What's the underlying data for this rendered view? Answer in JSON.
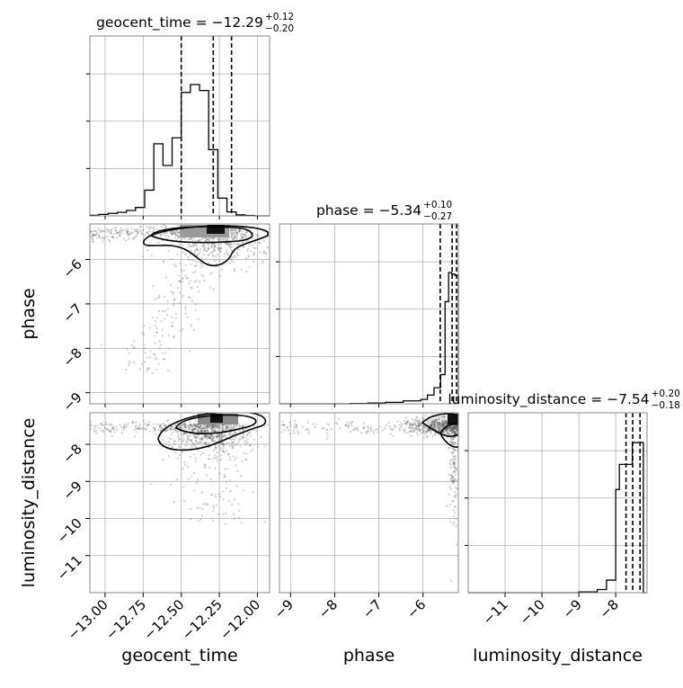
{
  "chart_data": {
    "type": "corner",
    "parameters": [
      {
        "name": "geocent_time",
        "title": "geocent_time = −12.29",
        "median": -12.29,
        "plus": "+0.12",
        "minus": "−0.20",
        "range": [
          -13.1,
          -11.92
        ],
        "ticks": [
          -13.0,
          -12.75,
          -12.5,
          -12.25,
          -12.0
        ],
        "tick_labels": [
          "−13.00",
          "−12.75",
          "−12.50",
          "−12.25",
          "−12.00"
        ],
        "quantiles": [
          -12.5,
          -12.29,
          -12.17
        ],
        "hist_edges": [
          -13.1,
          -13.04,
          -12.98,
          -12.92,
          -12.86,
          -12.8,
          -12.74,
          -12.68,
          -12.62,
          -12.56,
          -12.5,
          -12.44,
          -12.38,
          -12.32,
          -12.26,
          -12.2,
          -12.14,
          -12.08,
          -12.02,
          -11.96,
          -11.92
        ],
        "hist_counts": [
          0.5,
          1.5,
          2.5,
          3.5,
          5.5,
          8.5,
          26,
          73,
          51,
          79,
          125,
          133,
          127,
          67,
          18,
          4,
          1,
          0.3,
          0,
          0
        ]
      },
      {
        "name": "phase",
        "title": "phase = −5.34",
        "median": -5.34,
        "plus": "+0.10",
        "minus": "−0.27",
        "range": [
          -9.25,
          -5.2
        ],
        "ticks": [
          -9,
          -8,
          -7,
          -6
        ],
        "tick_labels": [
          "−9",
          "−8",
          "−7",
          "−6"
        ],
        "quantiles": [
          -5.61,
          -5.34,
          -5.24
        ],
        "hist_edges": [
          -9.25,
          -8.85,
          -8.45,
          -8.05,
          -7.65,
          -7.25,
          -6.85,
          -6.45,
          -6.05,
          -5.9,
          -5.75,
          -5.6,
          -5.5,
          -5.42,
          -5.35,
          -5.28,
          -5.2
        ],
        "hist_counts": [
          0,
          0,
          0,
          0,
          0.5,
          1,
          2,
          4,
          6,
          12,
          22,
          40,
          140,
          180,
          178,
          176
        ]
      },
      {
        "name": "luminosity_distance",
        "title": "luminosity_distance = −7.54",
        "median": -7.54,
        "plus": "+0.20",
        "minus": "−0.18",
        "range": [
          -12.0,
          -7.15
        ],
        "ticks": [
          -11,
          -10,
          -9,
          -8
        ],
        "tick_labels": [
          "−11",
          "−10",
          "−9",
          "−8"
        ],
        "quantiles": [
          -7.72,
          -7.54,
          -7.34
        ],
        "hist_edges": [
          -12.0,
          -11.5,
          -11.0,
          -10.5,
          -10.0,
          -9.5,
          -9.0,
          -8.5,
          -8.25,
          -8.0,
          -7.9,
          -7.7,
          -7.55,
          -7.4,
          -7.25,
          -7.15
        ],
        "hist_counts": [
          0,
          0,
          0,
          0,
          0,
          0,
          0.5,
          2,
          8,
          66,
          82,
          82,
          96,
          96,
          0
        ],
        "hist_ymax": 115
      }
    ],
    "row_axis_labels": [
      "phase",
      "luminosity_distance"
    ],
    "column_axis_labels": [
      "geocent_time",
      "phase",
      "luminosity_distance"
    ],
    "grid": true
  }
}
